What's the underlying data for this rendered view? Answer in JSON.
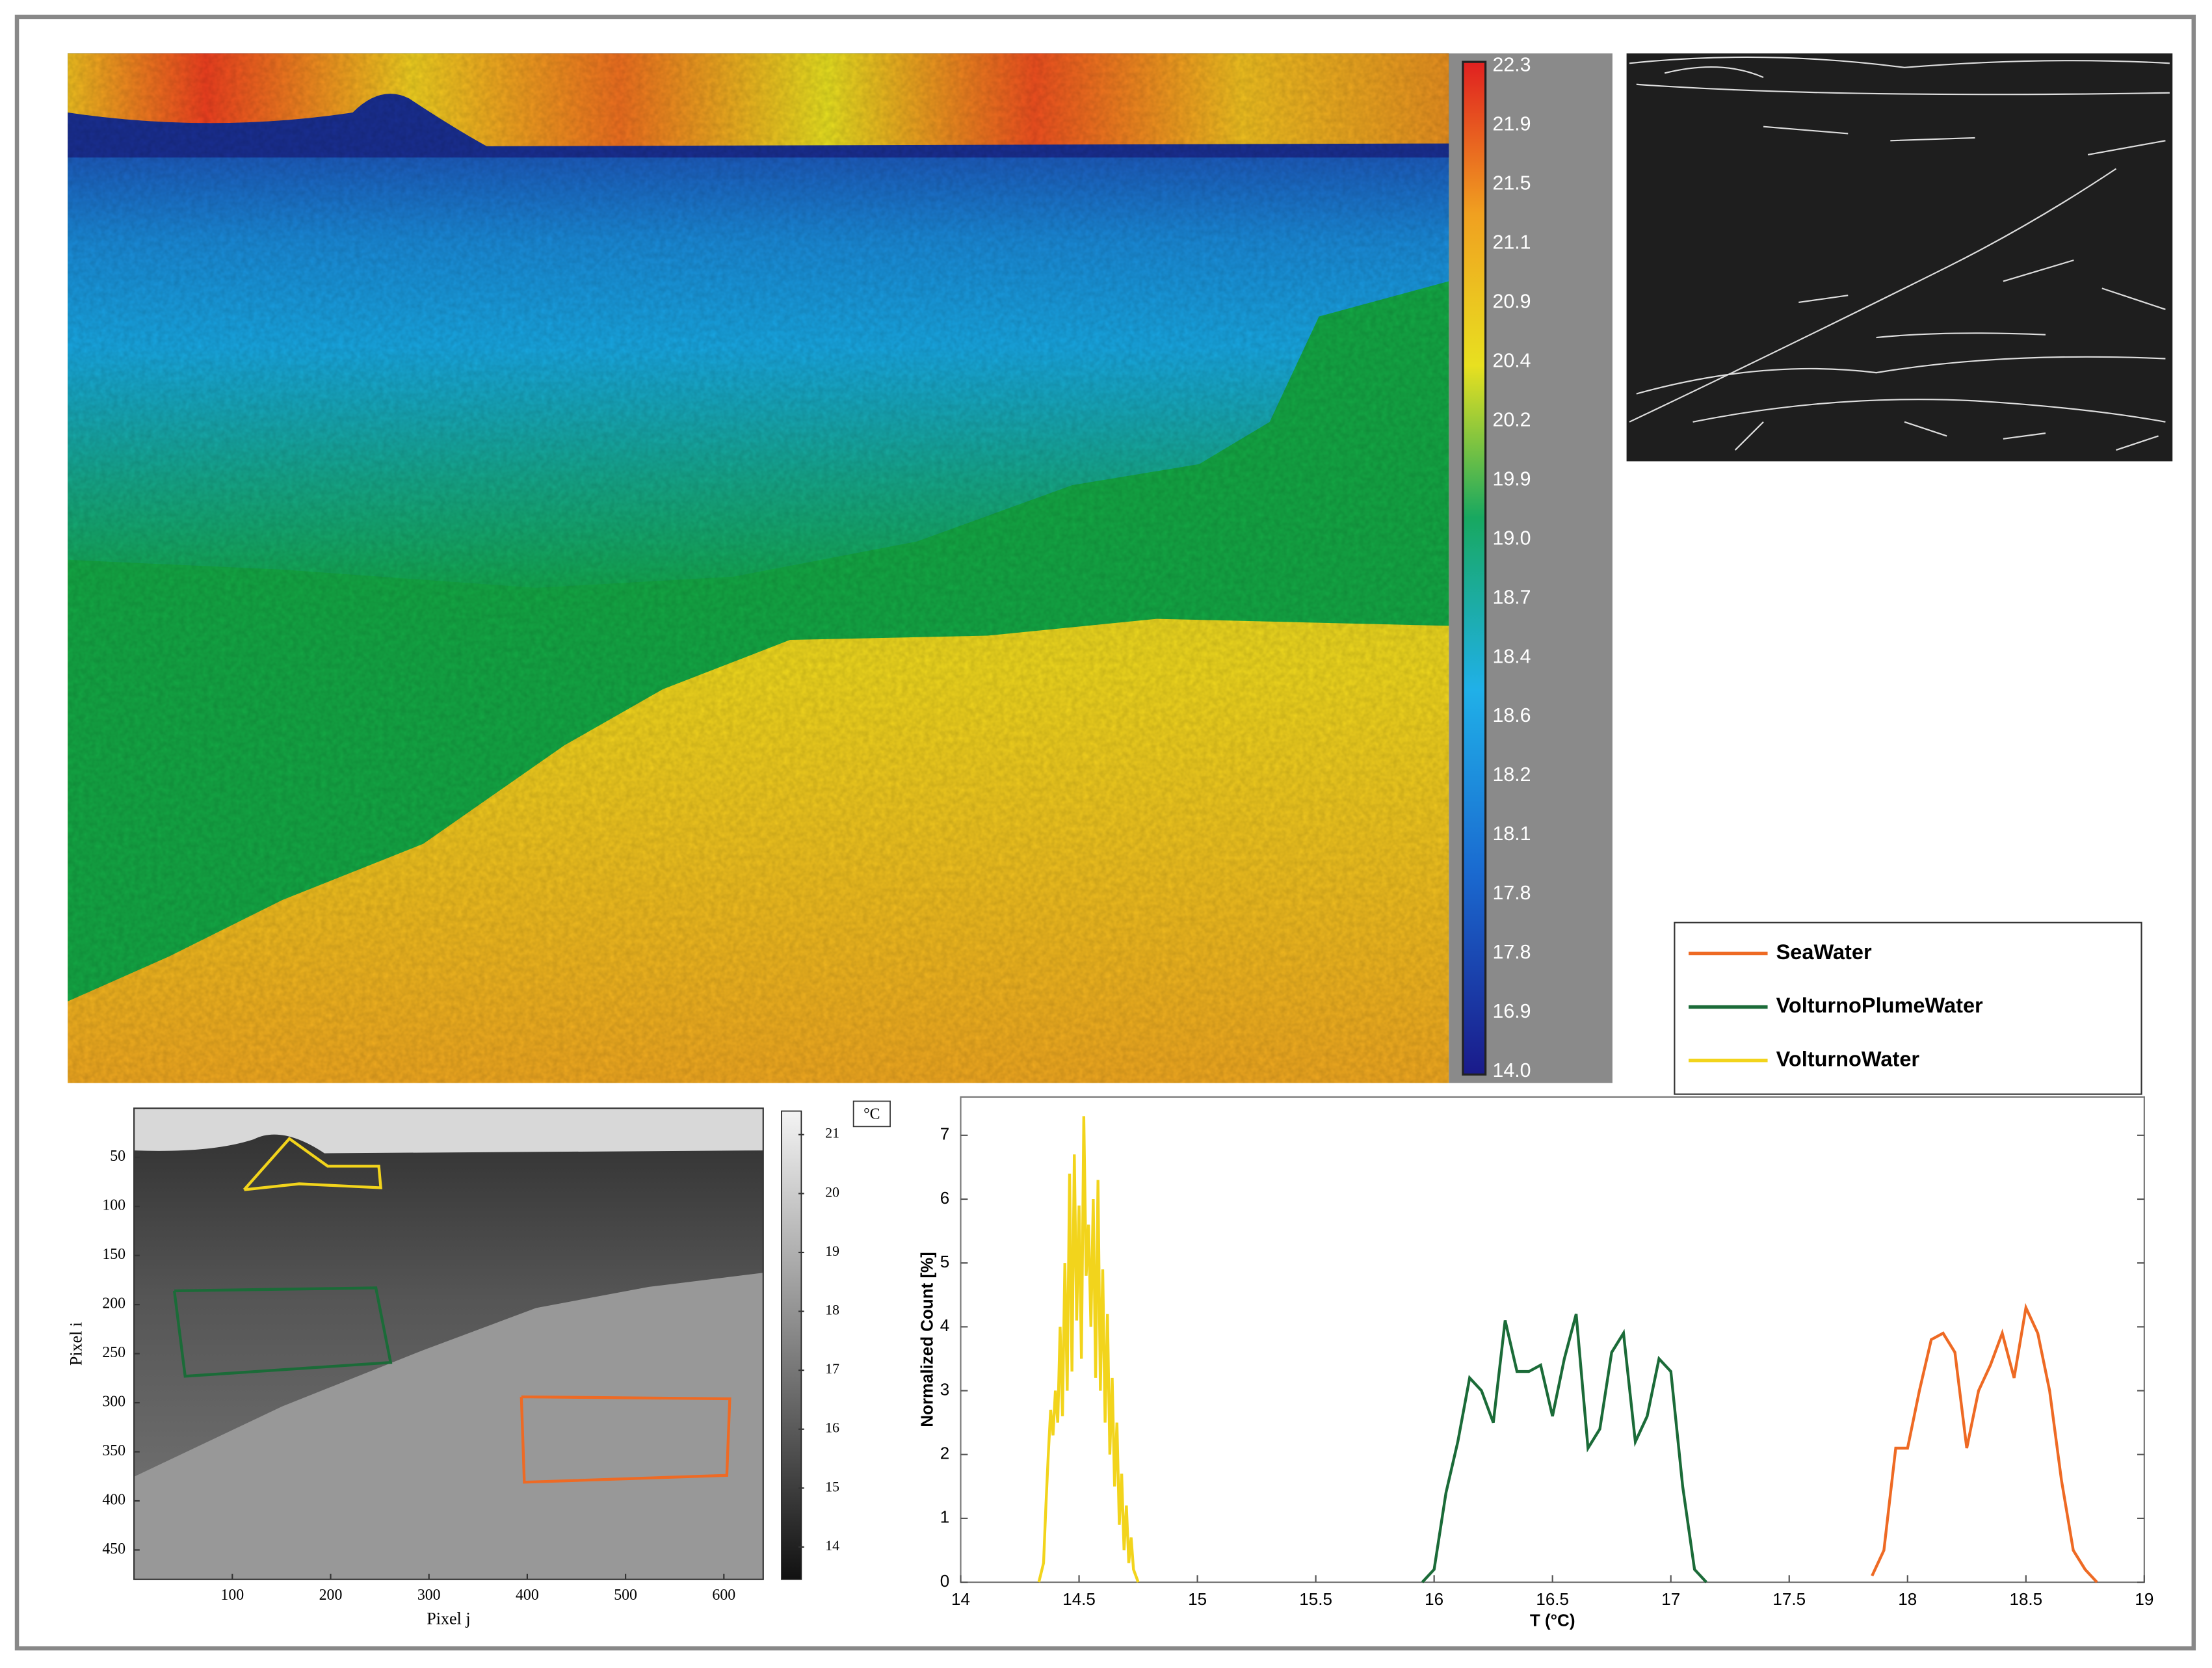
{
  "chart_data": [
    {
      "type": "image",
      "colorbar_labels": [
        "22.3",
        "21.9",
        "21.5",
        "21.1",
        "20.9",
        "20.4",
        "20.2",
        "19.9",
        "19.0",
        "18.7",
        "18.4",
        "18.6",
        "18.2",
        "18.1",
        "17.8",
        "17.8",
        "16.9",
        "14.0"
      ]
    },
    {
      "type": "edges"
    },
    {
      "type": "heatmap",
      "xlabel": "Pixel j",
      "ylabel": "Pixel i",
      "xlim": [
        0,
        640
      ],
      "ylim": [
        0,
        480
      ],
      "yreverse": true,
      "xticks": [
        100,
        200,
        300,
        400,
        500,
        600
      ],
      "yticks": [
        50,
        100,
        150,
        200,
        250,
        300,
        350,
        400,
        450
      ],
      "colorbar": {
        "label": "°C",
        "lim": [
          13.45,
          21.4
        ],
        "ticks": [
          14,
          15,
          16,
          17,
          18,
          19,
          20,
          21
        ]
      },
      "series": [
        {
          "color": "#f2d41c",
          "x": [
            112,
            158,
            197,
            249,
            251,
            168,
            112
          ],
          "values": [
            83,
            31,
            59,
            59,
            81,
            77,
            83
          ]
        },
        {
          "color": "#1b6b38",
          "x": [
            41,
            246,
            261,
            52,
            41
          ],
          "values": [
            186,
            183,
            259,
            273,
            186
          ]
        },
        {
          "color": "#ee6a24",
          "x": [
            394,
            606,
            603,
            397,
            394
          ],
          "values": [
            294,
            296,
            374,
            381,
            294
          ]
        }
      ]
    },
    {
      "type": "line",
      "xlabel": "T (°C)",
      "ylabel": "Normalized Count [%]",
      "xlim": [
        14,
        19
      ],
      "ylim": [
        0,
        7.6
      ],
      "xticks": [
        14,
        14.5,
        15,
        15.5,
        16,
        16.5,
        17,
        17.5,
        18,
        18.5,
        19
      ],
      "yticks": [
        0,
        1,
        2,
        3,
        4,
        5,
        6,
        7
      ],
      "legend": "upper right",
      "series": [
        {
          "name": "SeaWater",
          "color": "#ee6a24",
          "x": [
            17.85,
            17.9,
            17.95,
            18.0,
            18.05,
            18.1,
            18.15,
            18.2,
            18.25,
            18.3,
            18.35,
            18.4,
            18.45,
            18.5,
            18.55,
            18.6,
            18.65,
            18.7,
            18.75,
            18.8
          ],
          "values": [
            0.1,
            0.5,
            2.1,
            2.1,
            3.0,
            3.8,
            3.9,
            3.6,
            2.1,
            3.0,
            3.4,
            3.9,
            3.2,
            4.3,
            3.9,
            3.0,
            1.6,
            0.5,
            0.2,
            0
          ]
        },
        {
          "name": "VolturnoPlumeWater",
          "color": "#1b6b38",
          "x": [
            15.95,
            16.0,
            16.05,
            16.1,
            16.15,
            16.2,
            16.25,
            16.3,
            16.35,
            16.4,
            16.45,
            16.5,
            16.55,
            16.6,
            16.65,
            16.7,
            16.75,
            16.8,
            16.85,
            16.9,
            16.95,
            17.0,
            17.05,
            17.1,
            17.15
          ],
          "values": [
            0,
            0.2,
            1.4,
            2.2,
            3.2,
            3.0,
            2.5,
            4.1,
            3.3,
            3.3,
            3.4,
            2.6,
            3.5,
            4.2,
            2.1,
            2.4,
            3.6,
            3.9,
            2.2,
            2.6,
            3.5,
            3.3,
            1.5,
            0.2,
            0
          ]
        },
        {
          "name": "VolturnoWater",
          "color": "#f2d41c",
          "x": [
            14.33,
            14.35,
            14.36,
            14.37,
            14.38,
            14.39,
            14.4,
            14.41,
            14.42,
            14.43,
            14.44,
            14.45,
            14.46,
            14.47,
            14.48,
            14.49,
            14.5,
            14.51,
            14.52,
            14.53,
            14.54,
            14.55,
            14.56,
            14.57,
            14.58,
            14.59,
            14.6,
            14.61,
            14.62,
            14.63,
            14.64,
            14.65,
            14.66,
            14.67,
            14.68,
            14.69,
            14.7,
            14.71,
            14.72,
            14.73,
            14.74,
            14.75
          ],
          "values": [
            0,
            0.3,
            1.2,
            2.0,
            2.7,
            2.3,
            3.0,
            2.5,
            4.0,
            2.6,
            5.0,
            3.0,
            6.4,
            3.3,
            6.7,
            4.1,
            5.9,
            3.5,
            7.3,
            4.8,
            5.6,
            4.0,
            6.0,
            3.2,
            6.3,
            3.0,
            4.9,
            2.5,
            4.2,
            2.0,
            3.2,
            1.5,
            2.5,
            0.9,
            1.7,
            0.5,
            1.2,
            0.3,
            0.7,
            0.2,
            0.1,
            0
          ]
        }
      ]
    }
  ]
}
